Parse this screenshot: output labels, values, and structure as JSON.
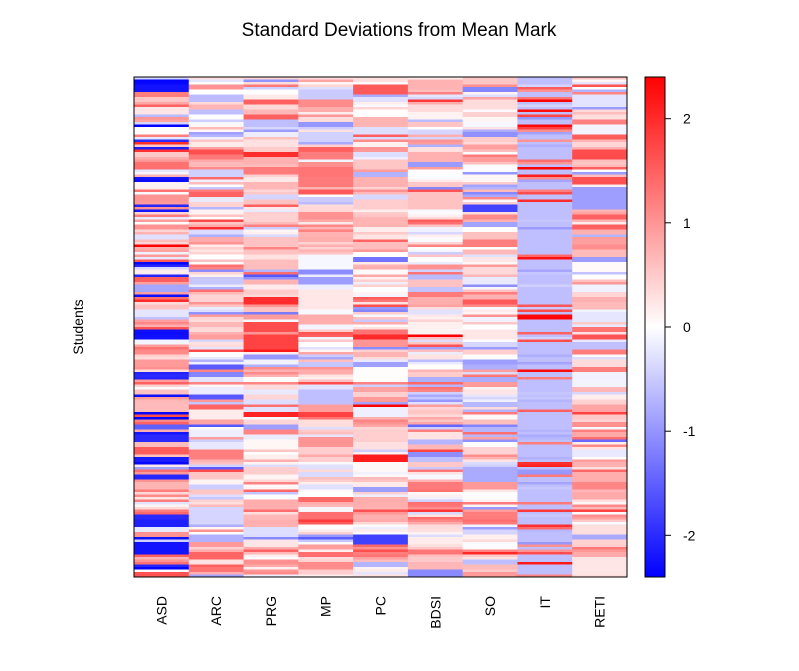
{
  "chart_data": {
    "type": "heatmap",
    "title": "Standard Deviations from Mean Mark",
    "ylabel": "Students",
    "xlabel": "",
    "categories": [
      "ASD",
      "ARC",
      "PRG",
      "MP",
      "PC",
      "BDSI",
      "SO",
      "IT",
      "RETI"
    ],
    "row_count": 200,
    "value_range": [
      -2.4,
      2.4
    ],
    "color_scale": {
      "low": "#0000ff",
      "mid": "#ffffff",
      "high": "#ff0000"
    },
    "colorbar_ticks": [
      2,
      1,
      0,
      -1,
      -2
    ],
    "colorbar_tick_labels": [
      "2",
      "1",
      "0",
      "-1",
      "-2"
    ],
    "column_profiles": {
      "ASD": {
        "typical": 0.5,
        "spread": 1.0,
        "low_outliers": true
      },
      "ARC": {
        "typical": 0.3,
        "spread": 0.9
      },
      "PRG": {
        "typical": 0.4,
        "spread": 0.8
      },
      "MP": {
        "typical": 0.3,
        "spread": 0.9
      },
      "PC": {
        "typical": 0.3,
        "spread": 0.9
      },
      "BDSI": {
        "typical": 0.2,
        "spread": 1.0
      },
      "SO": {
        "typical": 0.2,
        "spread": 0.9
      },
      "IT": {
        "typical": -0.6,
        "spread": 1.2,
        "high_outliers": true
      },
      "RETI": {
        "typical": 0.4,
        "spread": 0.8
      }
    }
  }
}
